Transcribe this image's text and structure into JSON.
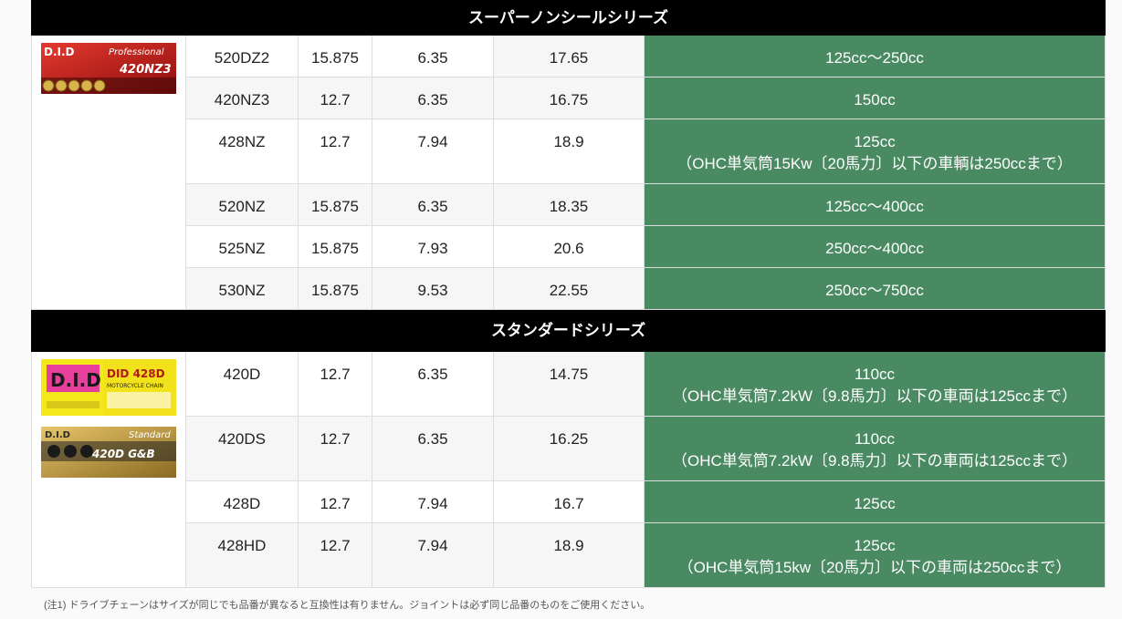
{
  "sections": [
    {
      "title": "スーパーノンシールシリーズ",
      "logos": [
        {
          "name": "did-professional-420nz3-logo",
          "brand": "D.I.D",
          "series": "Professional",
          "model": "420NZ3"
        }
      ],
      "rows": [
        {
          "model": "520DZ2",
          "pitch": "15.875",
          "width": "6.35",
          "height": "17.65",
          "use1": "125cc～250cc",
          "use2": ""
        },
        {
          "model": "420NZ3",
          "pitch": "12.7",
          "width": "6.35",
          "height": "16.75",
          "use1": "150cc",
          "use2": ""
        },
        {
          "model": "428NZ",
          "pitch": "12.7",
          "width": "7.94",
          "height": "18.9",
          "use1": "125cc",
          "use2": "（OHC単気筒15Kw〔20馬力〕以下の車輌は250ccまで）"
        },
        {
          "model": "520NZ",
          "pitch": "15.875",
          "width": "6.35",
          "height": "18.35",
          "use1": "125cc～400cc",
          "use2": ""
        },
        {
          "model": "525NZ",
          "pitch": "15.875",
          "width": "7.93",
          "height": "20.6",
          "use1": "250cc～400cc",
          "use2": ""
        },
        {
          "model": "530NZ",
          "pitch": "15.875",
          "width": "9.53",
          "height": "22.55",
          "use1": "250cc～750cc",
          "use2": ""
        }
      ]
    },
    {
      "title": "スタンダードシリーズ",
      "logos": [
        {
          "name": "did-428d-logo",
          "brand": "D.I.D",
          "model": "DID 428D",
          "sub": "MOTORCYCLE CHAIN"
        },
        {
          "name": "did-standard-420d-logo",
          "brand": "D.I.D",
          "series": "Standard",
          "model": "420D G&B"
        }
      ],
      "rows": [
        {
          "model": "420D",
          "pitch": "12.7",
          "width": "6.35",
          "height": "14.75",
          "use1": "110cc",
          "use2": "（OHC単気筒7.2kW〔9.8馬力〕以下の車両は125ccまで）"
        },
        {
          "model": "420DS",
          "pitch": "12.7",
          "width": "6.35",
          "height": "16.25",
          "use1": "110cc",
          "use2": "（OHC単気筒7.2kW〔9.8馬力〕以下の車両は125ccまで）"
        },
        {
          "model": "428D",
          "pitch": "12.7",
          "width": "7.94",
          "height": "16.7",
          "use1": "125cc",
          "use2": ""
        },
        {
          "model": "428HD",
          "pitch": "12.7",
          "width": "7.94",
          "height": "18.9",
          "use1": "125cc",
          "use2": "（OHC単気筒15kw〔20馬力〕以下の車両は250ccまで）"
        }
      ]
    }
  ],
  "note": "(注1) ドライブチェーンはサイズが同じでも品番が異なると互換性は有りません。ジョイントは必ず同じ品番のものをご使用ください。",
  "colors": {
    "header_bg": "#000000",
    "use_bg": "#4a8a62",
    "alt_bg": "#f6f6f6",
    "border": "#dddddd"
  }
}
